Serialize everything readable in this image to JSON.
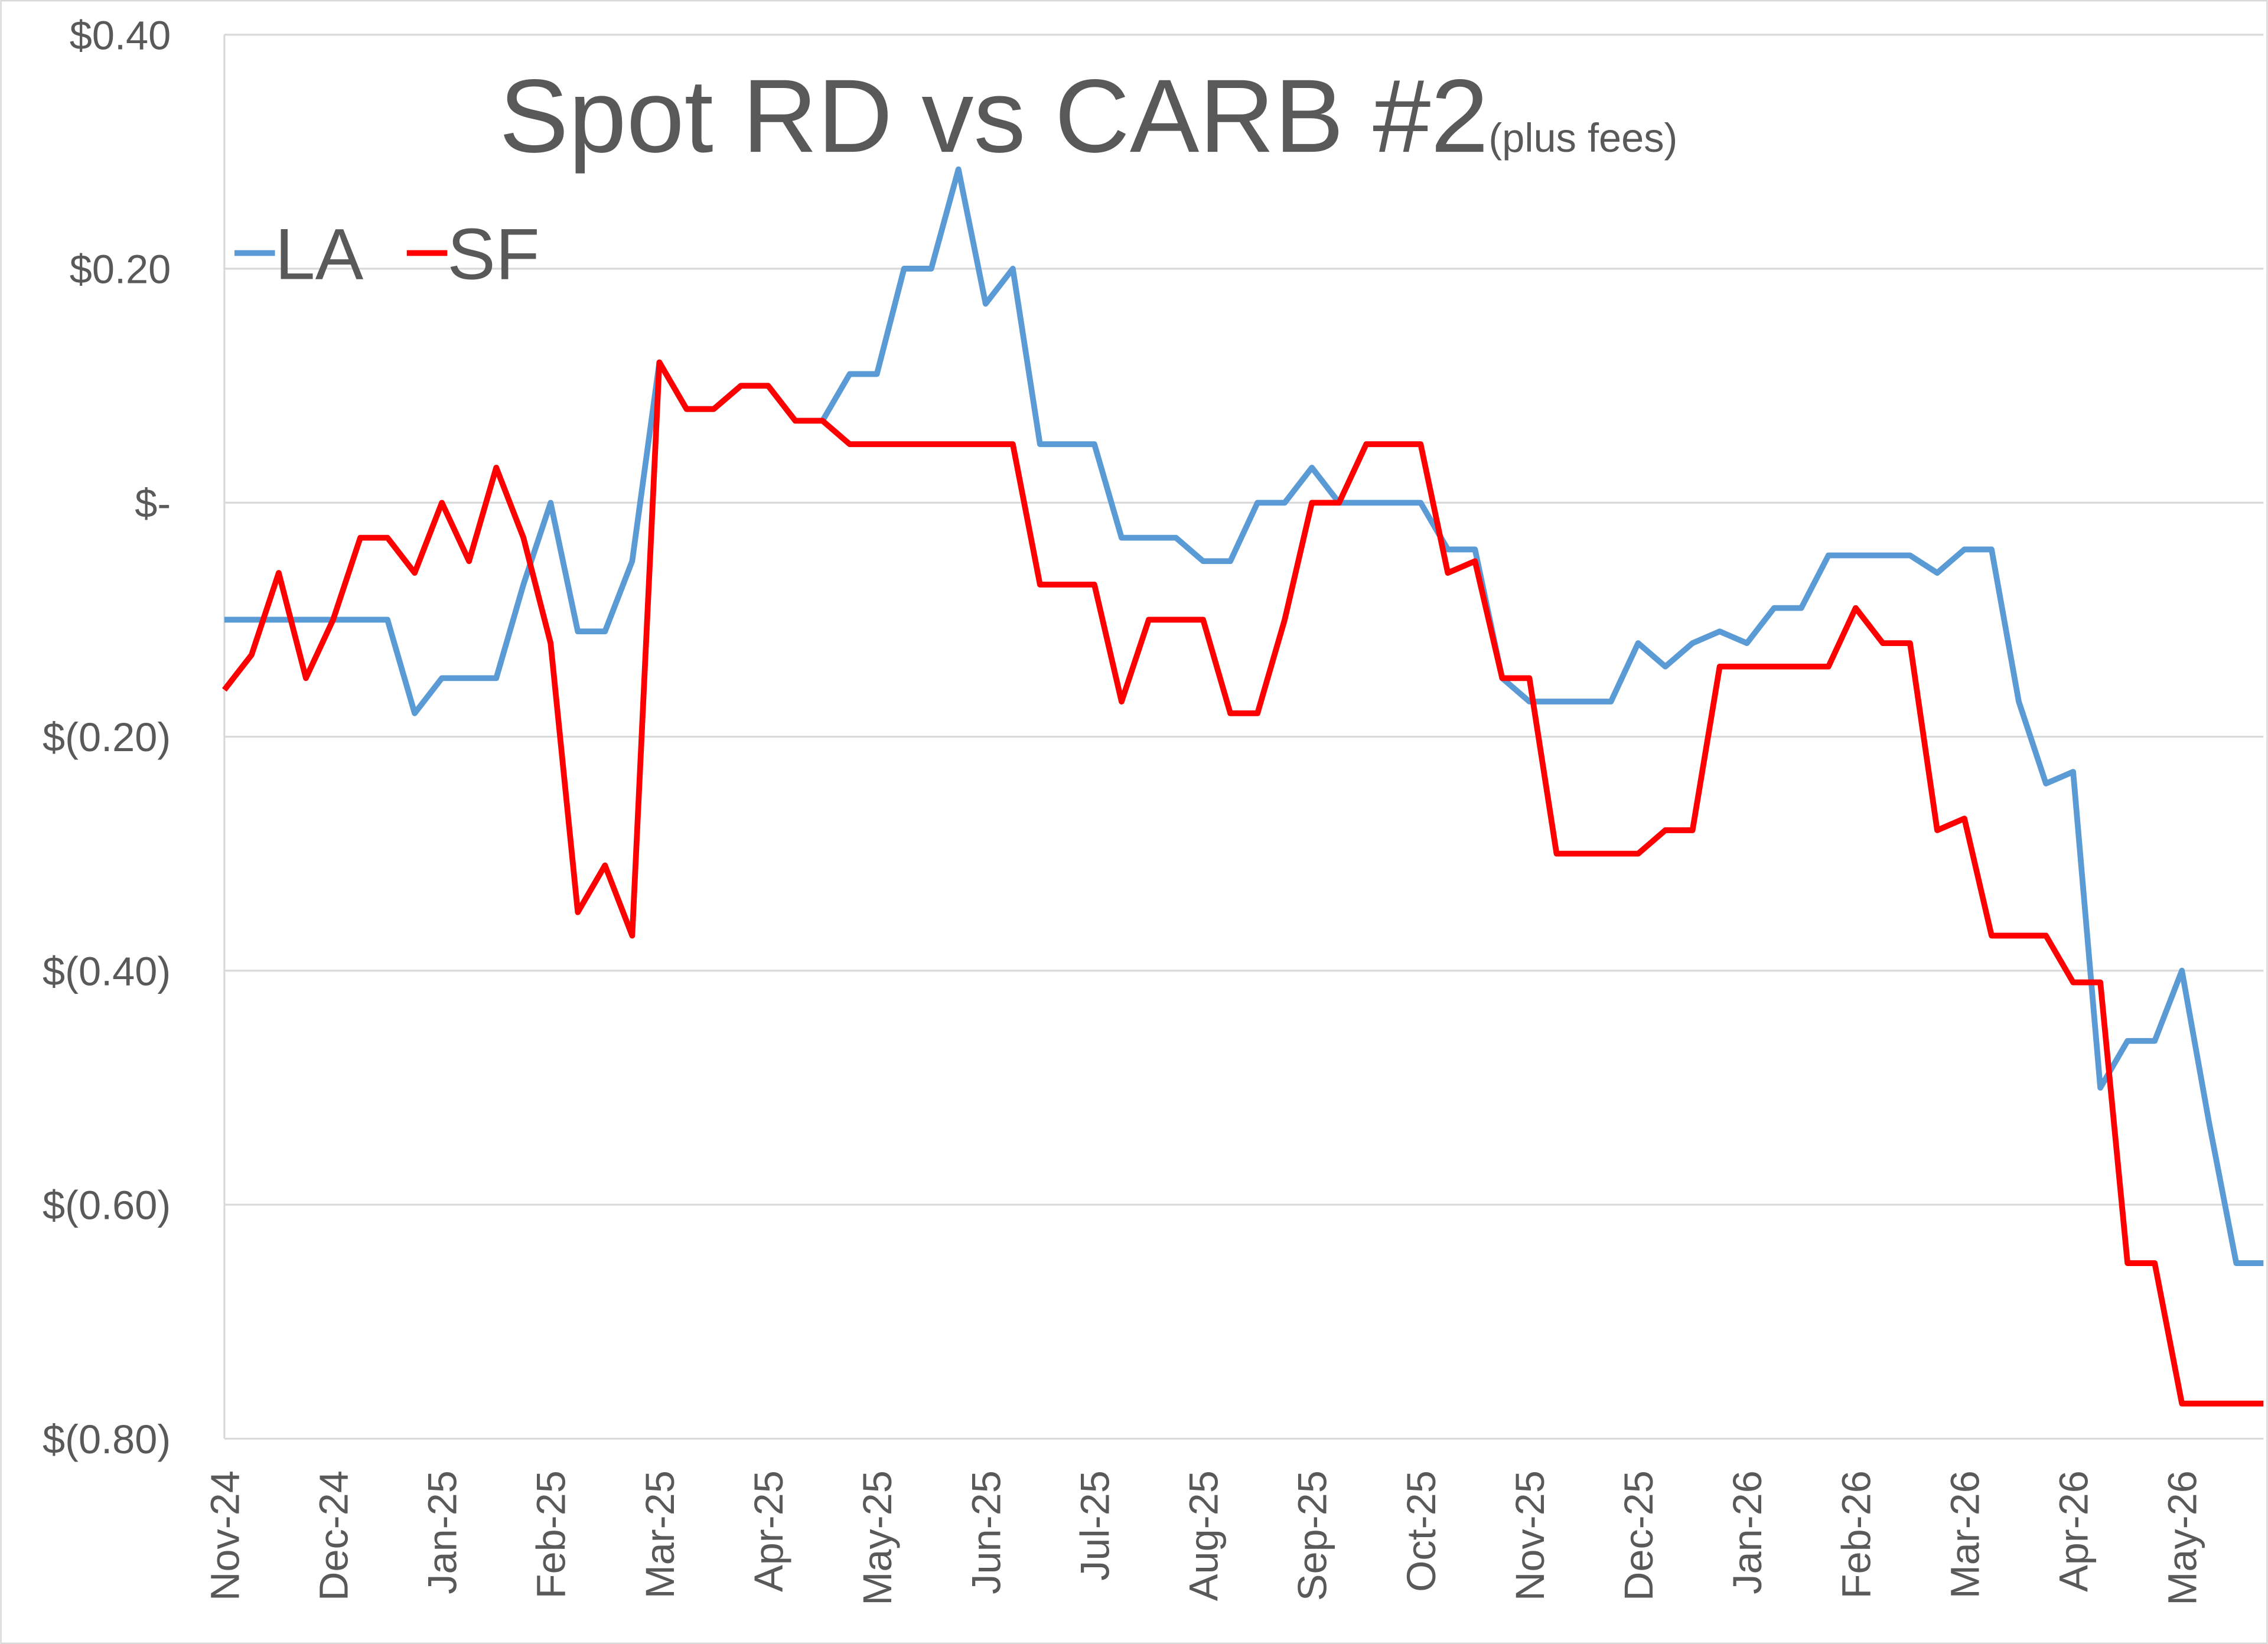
{
  "chart_data": {
    "type": "line",
    "title": "Spot RD vs CARB #2",
    "subtitle": "(plus fees)",
    "categories": [
      "Nov-24",
      null,
      null,
      null,
      "Dec-24",
      null,
      null,
      null,
      "Jan-25",
      null,
      null,
      null,
      "Feb-25",
      null,
      null,
      null,
      "Mar-25",
      null,
      null,
      null,
      "Apr-25",
      null,
      null,
      null,
      "May-25",
      null,
      null,
      null,
      "Jun-25",
      null,
      null,
      null,
      "Jul-25",
      null,
      null,
      null,
      "Aug-25",
      null,
      null,
      null,
      "Sep-25",
      null,
      null,
      null,
      "Oct-25",
      null,
      null,
      null,
      "Nov-25",
      null,
      null,
      null,
      "Dec-25",
      null,
      null,
      null,
      "Jan-26",
      null,
      null,
      null,
      "Feb-26",
      null,
      null,
      null,
      "Mar-26",
      null,
      null,
      null,
      "Apr-26",
      null,
      null,
      null,
      "May-26",
      null,
      null,
      null
    ],
    "series": [
      {
        "name": "LA",
        "color": "#5b9bd5",
        "values": [
          -0.1,
          -0.1,
          -0.1,
          -0.1,
          -0.1,
          -0.1,
          -0.1,
          -0.18,
          -0.15,
          -0.15,
          -0.15,
          -0.07,
          0.0,
          -0.11,
          -0.11,
          -0.05,
          0.12,
          0.08,
          0.08,
          0.1,
          0.1,
          0.07,
          0.07,
          0.11,
          0.11,
          0.2,
          0.2,
          0.285,
          0.17,
          0.2,
          0.05,
          0.05,
          0.05,
          -0.03,
          -0.03,
          -0.03,
          -0.05,
          -0.05,
          0.0,
          0.0,
          0.03,
          0.0,
          0.0,
          0.0,
          0.0,
          -0.04,
          -0.04,
          -0.15,
          -0.17,
          -0.17,
          -0.17,
          -0.17,
          -0.12,
          -0.14,
          -0.12,
          -0.11,
          -0.12,
          -0.09,
          -0.09,
          -0.045,
          -0.045,
          -0.045,
          -0.045,
          -0.06,
          -0.04,
          -0.04,
          -0.17,
          -0.24,
          -0.23,
          -0.5,
          -0.46,
          -0.46,
          -0.4,
          -0.53,
          -0.65,
          -0.65
        ]
      },
      {
        "name": "SF",
        "color": "#ff0000",
        "values": [
          -0.16,
          -0.13,
          -0.06,
          -0.15,
          -0.1,
          -0.03,
          -0.03,
          -0.06,
          0.0,
          -0.05,
          0.03,
          -0.03,
          -0.12,
          -0.35,
          -0.31,
          -0.37,
          0.12,
          0.08,
          0.08,
          0.1,
          0.1,
          0.07,
          0.07,
          0.05,
          0.05,
          0.05,
          0.05,
          0.05,
          0.05,
          0.05,
          -0.07,
          -0.07,
          -0.07,
          -0.17,
          -0.1,
          -0.1,
          -0.1,
          -0.18,
          -0.18,
          -0.1,
          0.0,
          0.0,
          0.05,
          0.05,
          0.05,
          -0.06,
          -0.05,
          -0.15,
          -0.15,
          -0.3,
          -0.3,
          -0.3,
          -0.3,
          -0.28,
          -0.28,
          -0.14,
          -0.14,
          -0.14,
          -0.14,
          -0.14,
          -0.09,
          -0.12,
          -0.12,
          -0.28,
          -0.27,
          -0.37,
          -0.37,
          -0.37,
          -0.41,
          -0.41,
          -0.65,
          -0.65,
          -0.77,
          -0.77,
          -0.77,
          -0.77
        ]
      }
    ],
    "ylim": [
      -0.8,
      0.4
    ],
    "yticks": [
      {
        "value": 0.4,
        "label": "$0.40"
      },
      {
        "value": 0.2,
        "label": "$0.20"
      },
      {
        "value": 0,
        "label": "$-"
      },
      {
        "value": -0.2,
        "label": "$(0.20)"
      },
      {
        "value": -0.4,
        "label": "$(0.40)"
      },
      {
        "value": -0.6,
        "label": "$(0.60)"
      },
      {
        "value": -0.8,
        "label": "$(0.80)"
      }
    ],
    "grid": true,
    "legend": "top-left"
  }
}
